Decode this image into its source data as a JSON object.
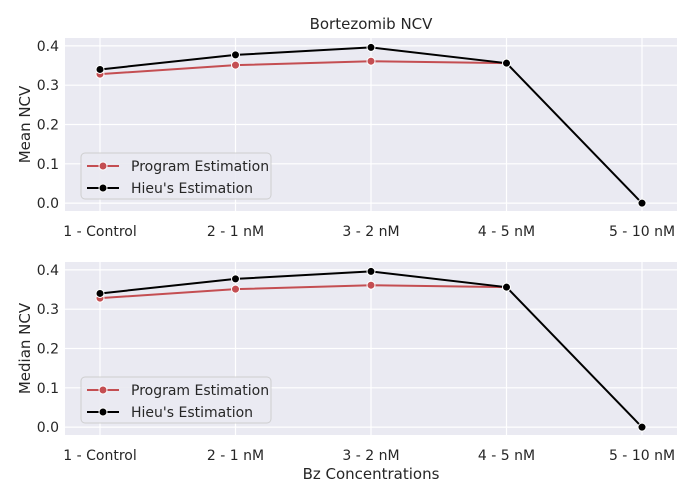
{
  "chart_data": [
    {
      "type": "line",
      "title": "Bortezomib NCV",
      "xlabel": "",
      "ylabel": "Mean NCV",
      "categories": [
        "1 - Control",
        "2 - 1 nM",
        "3 - 2 nM",
        "4 - 5 nM",
        "5 - 10 nM"
      ],
      "ylim": [
        -0.02,
        0.42
      ],
      "yticks": [
        0.0,
        0.1,
        0.2,
        0.3,
        0.4
      ],
      "ytick_labels": [
        "0.0",
        "0.1",
        "0.2",
        "0.3",
        "0.4"
      ],
      "grid": true,
      "legend_position": "lower-left",
      "series": [
        {
          "name": "Program Estimation",
          "color": "#c44e52",
          "values": [
            0.328,
            0.351,
            0.361,
            0.356,
            null
          ]
        },
        {
          "name": "Hieu's Estimation",
          "color": "#000000",
          "values": [
            0.34,
            0.377,
            0.396,
            0.356,
            0.0
          ]
        }
      ]
    },
    {
      "type": "line",
      "title": "",
      "xlabel": "Bz Concentrations",
      "ylabel": "Median NCV",
      "categories": [
        "1 - Control",
        "2 - 1 nM",
        "3 - 2 nM",
        "4 - 5 nM",
        "5 - 10 nM"
      ],
      "ylim": [
        -0.02,
        0.42
      ],
      "yticks": [
        0.0,
        0.1,
        0.2,
        0.3,
        0.4
      ],
      "ytick_labels": [
        "0.0",
        "0.1",
        "0.2",
        "0.3",
        "0.4"
      ],
      "grid": true,
      "legend_position": "lower-left",
      "series": [
        {
          "name": "Program Estimation",
          "color": "#c44e52",
          "values": [
            0.328,
            0.351,
            0.361,
            0.356,
            null
          ]
        },
        {
          "name": "Hieu's Estimation",
          "color": "#000000",
          "values": [
            0.34,
            0.377,
            0.396,
            0.356,
            0.0
          ]
        }
      ]
    }
  ],
  "style": {
    "plot_background": "#eaeaf2",
    "grid_color": "#ffffff",
    "text_color": "#262626"
  }
}
